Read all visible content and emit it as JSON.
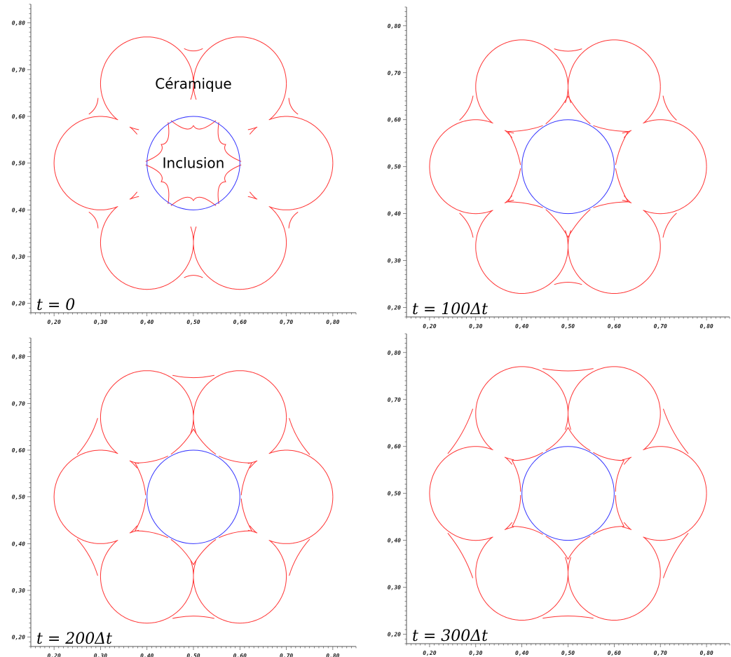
{
  "colors": {
    "interface": "#ff3333",
    "inclusion": "#3333ff",
    "axis": "#555555"
  },
  "chart_data": [
    {
      "type": "line",
      "time_label": "t = 0",
      "annotations": [
        "Céramique",
        "Inclusion"
      ],
      "xlim": [
        0.15,
        0.85
      ],
      "ylim": [
        0.18,
        0.84
      ],
      "xticks": [
        0.2,
        0.3,
        0.4,
        0.5,
        0.6,
        0.7,
        0.8
      ],
      "xtick_labels": [
        "0,20",
        "0,30",
        "0,40",
        "0,50",
        "0,60",
        "0,70",
        "0,80"
      ],
      "yticks": [
        0.2,
        0.3,
        0.4,
        0.5,
        0.6,
        0.7,
        0.8
      ],
      "ytick_labels": [
        "0,20",
        "0,30",
        "0,40",
        "0,50",
        "0,60",
        "0,70",
        "0,80"
      ],
      "inclusion": {
        "cx": 0.5,
        "cy": 0.5,
        "r": 0.1
      },
      "ceramic": {
        "centers": [
          [
            0.6,
            0.67
          ],
          [
            0.7,
            0.5
          ],
          [
            0.6,
            0.33
          ],
          [
            0.4,
            0.33
          ],
          [
            0.3,
            0.5
          ],
          [
            0.4,
            0.67
          ]
        ],
        "r": 0.1,
        "outer_bump": 0,
        "inner_tip": 0.58
      }
    },
    {
      "type": "line",
      "time_label": "t = 100Δt",
      "annotations": [],
      "xlim": [
        0.15,
        0.85
      ],
      "ylim": [
        0.18,
        0.84
      ],
      "xticks": [
        0.2,
        0.3,
        0.4,
        0.5,
        0.6,
        0.7,
        0.8
      ],
      "xtick_labels": [
        "0,20",
        "0,30",
        "0,40",
        "0,50",
        "0,60",
        "0,70",
        "0,80"
      ],
      "yticks": [
        0.2,
        0.3,
        0.4,
        0.5,
        0.6,
        0.7,
        0.8
      ],
      "ytick_labels": [
        "0,20",
        "0,30",
        "0,40",
        "0,50",
        "0,60",
        "0,70",
        "0,80"
      ],
      "inclusion": {
        "cx": 0.5,
        "cy": 0.5,
        "r": 0.1
      },
      "ceramic": {
        "centers": [
          [
            0.6,
            0.67
          ],
          [
            0.7,
            0.5
          ],
          [
            0.6,
            0.33
          ],
          [
            0.4,
            0.33
          ],
          [
            0.3,
            0.5
          ],
          [
            0.4,
            0.67
          ]
        ],
        "r": 0.1,
        "outer_bump": 0.01,
        "inner_tip": 0.65
      }
    },
    {
      "type": "line",
      "time_label": "t = 200Δt",
      "annotations": [],
      "xlim": [
        0.15,
        0.85
      ],
      "ylim": [
        0.18,
        0.84
      ],
      "xticks": [
        0.2,
        0.3,
        0.4,
        0.5,
        0.6,
        0.7,
        0.8
      ],
      "xtick_labels": [
        "0,20",
        "0,30",
        "0,40",
        "0,50",
        "0,60",
        "0,70",
        "0,80"
      ],
      "yticks": [
        0.2,
        0.3,
        0.4,
        0.5,
        0.6,
        0.7,
        0.8
      ],
      "ytick_labels": [
        "0,20",
        "0,30",
        "0,40",
        "0,50",
        "0,60",
        "0,70",
        "0,80"
      ],
      "inclusion": {
        "cx": 0.5,
        "cy": 0.5,
        "r": 0.1
      },
      "ceramic": {
        "centers": [
          [
            0.6,
            0.67
          ],
          [
            0.7,
            0.5
          ],
          [
            0.6,
            0.33
          ],
          [
            0.4,
            0.33
          ],
          [
            0.3,
            0.5
          ],
          [
            0.4,
            0.67
          ]
        ],
        "r": 0.1,
        "outer_bump": 0.025,
        "inner_tip": 0.645
      }
    },
    {
      "type": "line",
      "time_label": "t = 300Δt",
      "annotations": [],
      "xlim": [
        0.15,
        0.85
      ],
      "ylim": [
        0.18,
        0.84
      ],
      "xticks": [
        0.2,
        0.3,
        0.4,
        0.5,
        0.6,
        0.7,
        0.8
      ],
      "xtick_labels": [
        "0,20",
        "0,30",
        "0,40",
        "0,50",
        "0,60",
        "0,70",
        "0,80"
      ],
      "yticks": [
        0.2,
        0.3,
        0.4,
        0.5,
        0.6,
        0.7,
        0.8
      ],
      "ytick_labels": [
        "0,20",
        "0,30",
        "0,40",
        "0,50",
        "0,60",
        "0,70",
        "0,80"
      ],
      "inclusion": {
        "cx": 0.5,
        "cy": 0.5,
        "r": 0.1
      },
      "ceramic": {
        "centers": [
          [
            0.6,
            0.67
          ],
          [
            0.7,
            0.5
          ],
          [
            0.6,
            0.33
          ],
          [
            0.4,
            0.33
          ],
          [
            0.3,
            0.5
          ],
          [
            0.4,
            0.67
          ]
        ],
        "r": 0.1,
        "outer_bump": 0.035,
        "inner_tip": 0.64
      }
    }
  ]
}
